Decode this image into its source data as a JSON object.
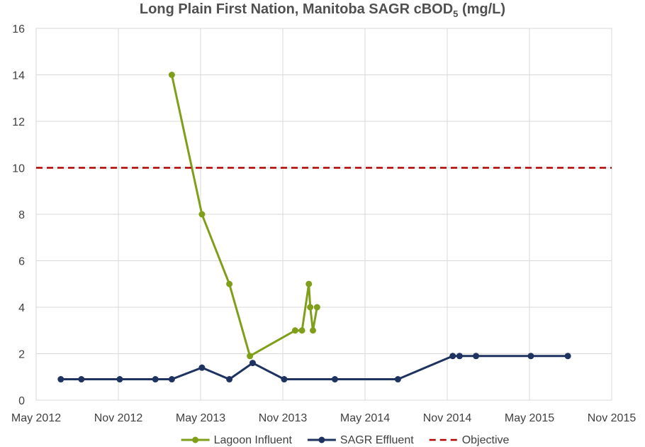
{
  "chart_data": {
    "type": "line",
    "title": "Long Plain First Nation, Manitoba SAGR cBOD",
    "title_subscript": "5",
    "title_suffix": " (mg/L)",
    "xlabel": "",
    "ylabel": "",
    "ylim": [
      0,
      16
    ],
    "yticks": [
      0,
      2,
      4,
      6,
      8,
      10,
      12,
      14,
      16
    ],
    "xlim": [
      0,
      42
    ],
    "x_unit": "months since May 2012",
    "xticks": [
      {
        "x": 0,
        "label": "May 2012"
      },
      {
        "x": 6,
        "label": "Nov 2012"
      },
      {
        "x": 12,
        "label": "May 2013"
      },
      {
        "x": 18,
        "label": "Nov 2013"
      },
      {
        "x": 24,
        "label": "May 2014"
      },
      {
        "x": 30,
        "label": "Nov 2014"
      },
      {
        "x": 36,
        "label": "May 2015"
      },
      {
        "x": 42,
        "label": "Nov 2015"
      }
    ],
    "grid": true,
    "legend_position": "bottom",
    "series": [
      {
        "name": "Lagoon Influent",
        "color": "#7F9F1A",
        "style": "solid",
        "x": [
          9.9,
          12.1,
          14.1,
          15.6,
          18.9,
          19.4,
          19.9,
          20.0,
          20.2,
          20.5
        ],
        "y": [
          14,
          8,
          5,
          1.9,
          3,
          3,
          5,
          4,
          3,
          4
        ]
      },
      {
        "name": "SAGR Effluent",
        "color": "#1F3360",
        "style": "solid",
        "x": [
          1.8,
          3.3,
          6.1,
          8.7,
          9.9,
          12.1,
          14.1,
          15.8,
          18.1,
          21.8,
          26.4,
          30.4,
          30.9,
          32.1,
          36.1,
          38.8
        ],
        "y": [
          0.9,
          0.9,
          0.9,
          0.9,
          0.9,
          1.4,
          0.9,
          1.6,
          0.9,
          0.9,
          0.9,
          1.9,
          1.9,
          1.9,
          1.9,
          1.9
        ]
      },
      {
        "name": "Objective",
        "color": "#B00000",
        "style": "dashed",
        "constant": 10
      }
    ]
  }
}
